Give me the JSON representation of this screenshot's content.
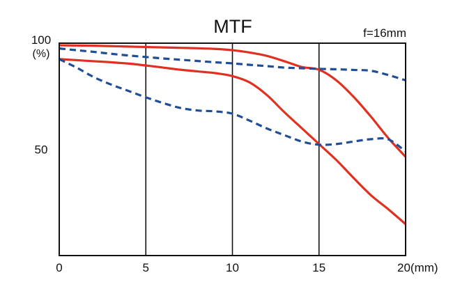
{
  "chart_data": {
    "type": "line",
    "title": "MTF",
    "annotation": "f=16mm",
    "x": [
      0,
      1,
      2,
      3,
      4,
      5,
      6,
      7,
      8,
      9,
      10,
      11,
      12,
      13,
      14,
      15,
      16,
      17,
      18,
      19,
      20
    ],
    "xlim": [
      0,
      20
    ],
    "ylim": [
      0,
      100
    ],
    "x_ticks": [
      {
        "value": 0,
        "label": "0"
      },
      {
        "value": 5,
        "label": "5"
      },
      {
        "value": 10,
        "label": "10"
      },
      {
        "value": 15,
        "label": "15"
      },
      {
        "value": 20,
        "label": "20(mm)"
      }
    ],
    "y_ticks": [
      {
        "value": 100,
        "label": "100"
      },
      {
        "value": 50,
        "label": "50"
      }
    ],
    "y_unit_label": "(%)",
    "grid": {
      "vertical_at": [
        5,
        10,
        15
      ],
      "horizontal": false
    },
    "series": [
      {
        "style": "solid",
        "color": "#e03020",
        "values": [
          99,
          98.9,
          98.8,
          98.6,
          98.4,
          98.2,
          98,
          97.8,
          97.6,
          97.3,
          96.7,
          95.6,
          94,
          91.5,
          88.8,
          87.5,
          82.5,
          74.7,
          65.4,
          55.3,
          46.5
        ]
      },
      {
        "style": "solid",
        "color": "#e03020",
        "values": [
          92.5,
          92,
          91.5,
          91,
          90.4,
          89.5,
          88.5,
          87.5,
          86.7,
          85.9,
          84.5,
          81.5,
          75.5,
          67.5,
          60,
          52.5,
          45,
          36.5,
          28.4,
          21.8,
          14.8
        ]
      },
      {
        "style": "dashed",
        "color": "#1f4e96",
        "values": [
          97.5,
          96.7,
          95.9,
          95,
          94.2,
          93.5,
          92.8,
          92.2,
          91.6,
          91,
          90.5,
          89.8,
          89.2,
          88.5,
          88.2,
          87.9,
          87.7,
          87.4,
          87,
          85,
          82.5
        ]
      },
      {
        "style": "dashed",
        "color": "#1f4e96",
        "values": [
          92.5,
          88.5,
          84,
          80.5,
          77.5,
          74.5,
          71.8,
          69.5,
          68.3,
          67.9,
          66.8,
          63.5,
          59.8,
          56.7,
          53.7,
          52.2,
          52.5,
          53.7,
          54.8,
          54.7,
          49
        ]
      }
    ]
  }
}
